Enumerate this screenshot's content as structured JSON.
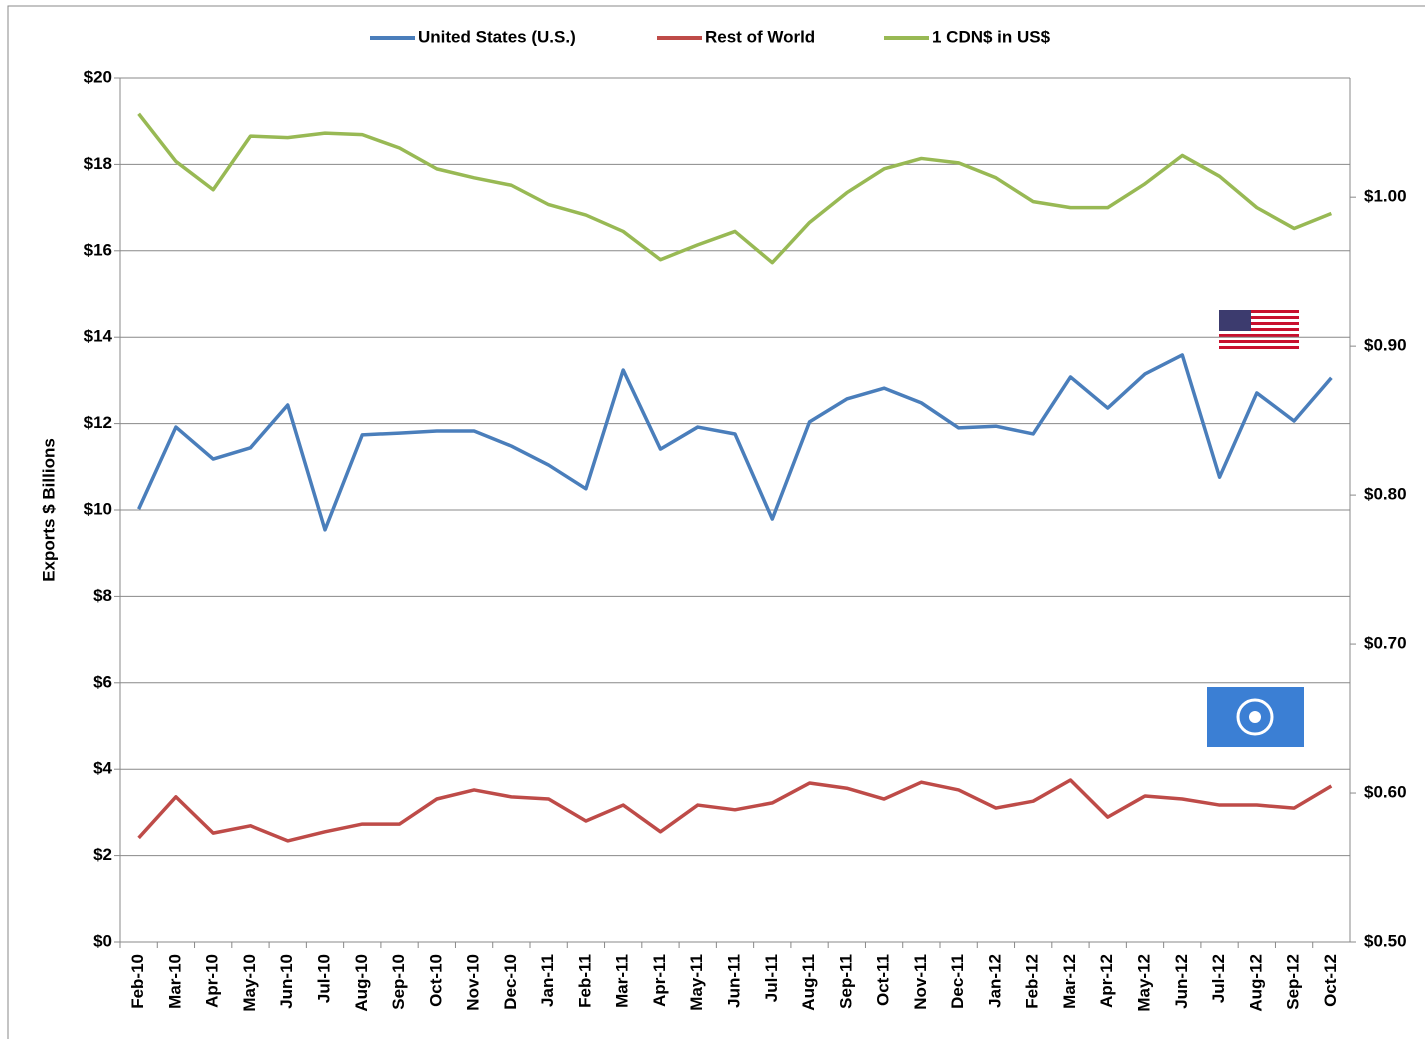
{
  "chart_data": {
    "type": "line",
    "categories": [
      "Feb-10",
      "Mar-10",
      "Apr-10",
      "May-10",
      "Jun-10",
      "Jul-10",
      "Aug-10",
      "Sep-10",
      "Oct-10",
      "Nov-10",
      "Dec-10",
      "Jan-11",
      "Feb-11",
      "Mar-11",
      "Apr-11",
      "May-11",
      "Jun-11",
      "Jul-11",
      "Aug-11",
      "Sep-11",
      "Oct-11",
      "Nov-11",
      "Dec-11",
      "Jan-12",
      "Feb-12",
      "Mar-12",
      "Apr-12",
      "May-12",
      "Jun-12",
      "Jul-12",
      "Aug-12",
      "Sep-12",
      "Oct-12"
    ],
    "series": [
      {
        "name": "United States (U.S.)",
        "color": "#4a7ebb",
        "values": [
          10.02,
          11.92,
          11.18,
          11.44,
          12.43,
          9.54,
          11.74,
          11.78,
          11.83,
          11.83,
          11.48,
          11.04,
          10.49,
          13.24,
          11.41,
          11.92,
          11.76,
          9.79,
          12.04,
          12.57,
          12.82,
          12.48,
          11.9,
          11.94,
          11.76,
          13.08,
          12.36,
          13.15,
          13.59,
          10.76,
          12.71,
          12.06,
          13.06
        ]
      },
      {
        "name": "Rest of World",
        "color": "#be4b48",
        "values": [
          2.41,
          3.36,
          2.52,
          2.69,
          2.34,
          2.55,
          2.73,
          2.73,
          3.31,
          3.52,
          3.36,
          3.31,
          2.8,
          3.17,
          2.55,
          3.17,
          3.06,
          3.22,
          3.68,
          3.56,
          3.31,
          3.7,
          3.52,
          3.1,
          3.26,
          3.75,
          2.89,
          3.38,
          3.31,
          3.17,
          3.17,
          3.1,
          3.61
        ]
      },
      {
        "name": "1 CDN$ in US$",
        "color": "#98b954",
        "axis": "y2",
        "values": [
          1.056,
          1.024,
          1.005,
          1.041,
          1.04,
          1.043,
          1.042,
          1.033,
          1.019,
          1.013,
          1.008,
          0.995,
          0.988,
          0.977,
          0.958,
          0.968,
          0.977,
          0.956,
          0.983,
          1.003,
          1.019,
          1.026,
          1.023,
          1.013,
          0.997,
          0.993,
          0.993,
          1.009,
          1.028,
          1.014,
          0.993,
          0.979,
          0.989
        ]
      }
    ],
    "y_label": "Exports  $ Billions",
    "ylim": [
      0,
      20
    ],
    "yticks": [
      {
        "value": 0,
        "label": "$0"
      },
      {
        "value": 2,
        "label": "$2"
      },
      {
        "value": 4,
        "label": "$4"
      },
      {
        "value": 6,
        "label": "$6"
      },
      {
        "value": 8,
        "label": "$8"
      },
      {
        "value": 10,
        "label": "$10"
      },
      {
        "value": 12,
        "label": "$12"
      },
      {
        "value": 14,
        "label": "$14"
      },
      {
        "value": 16,
        "label": "$16"
      },
      {
        "value": 18,
        "label": "$18"
      },
      {
        "value": 20,
        "label": "$20"
      }
    ],
    "y2lim": [
      0.5,
      1.08
    ],
    "y2ticks": [
      {
        "value": 0.5,
        "label": "$0.50"
      },
      {
        "value": 0.6,
        "label": "$0.60"
      },
      {
        "value": 0.7,
        "label": "$0.70"
      },
      {
        "value": 0.8,
        "label": "$0.80"
      },
      {
        "value": 0.9,
        "label": "$0.90"
      },
      {
        "value": 1.0,
        "label": "$1.00"
      }
    ],
    "grid": true,
    "legend": "top"
  }
}
